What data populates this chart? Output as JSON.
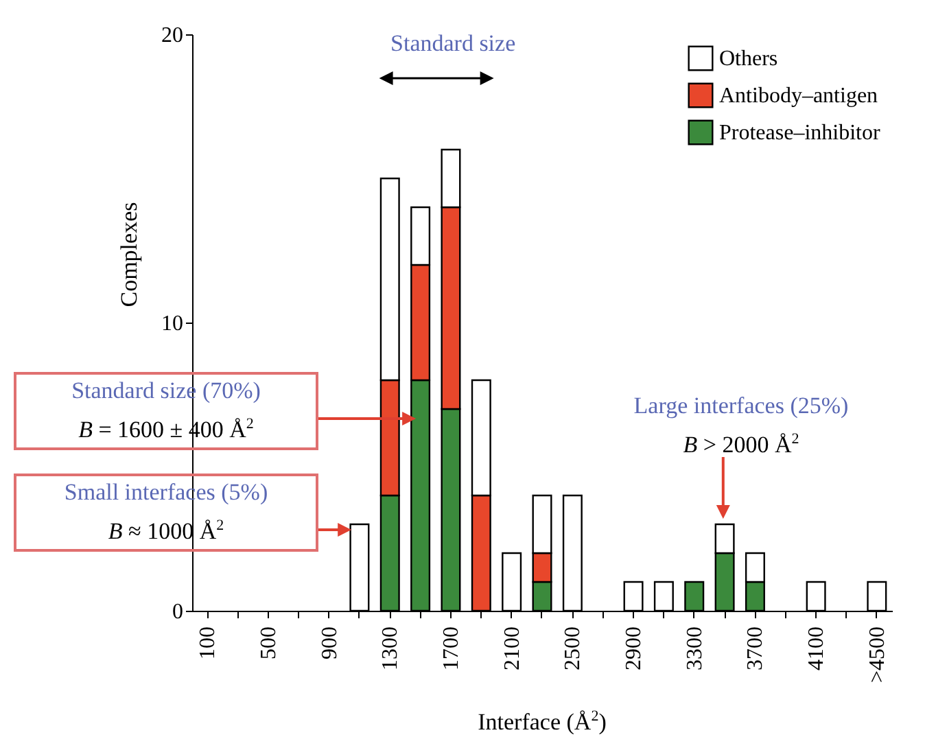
{
  "chart_data": {
    "type": "bar",
    "stacked": true,
    "xlabel": "Interface (Å$^{2}$)",
    "ylabel": "Complexes",
    "categories": [
      "100",
      null,
      "500",
      null,
      "900",
      null,
      "1300",
      null,
      "1700",
      null,
      "2100",
      null,
      "2500",
      null,
      "2900",
      null,
      "3300",
      null,
      "3700",
      null,
      "4100",
      null,
      ">4500"
    ],
    "series": [
      {
        "name": "Protease–inhibitor",
        "color": "#3b8a3c",
        "values": [
          null,
          null,
          null,
          null,
          null,
          null,
          4,
          8,
          7,
          null,
          null,
          1,
          null,
          null,
          null,
          null,
          1,
          2,
          1,
          null,
          null,
          null,
          null
        ]
      },
      {
        "name": "Antibody–antigen",
        "color": "#e8472b",
        "values": [
          null,
          null,
          null,
          null,
          null,
          null,
          4,
          4,
          7,
          4,
          null,
          1,
          null,
          null,
          null,
          null,
          null,
          null,
          null,
          null,
          null,
          null,
          null
        ]
      },
      {
        "name": "Others",
        "color": "#ffffff",
        "values": [
          null,
          null,
          null,
          null,
          null,
          3,
          7,
          2,
          2,
          4,
          2,
          2,
          4,
          null,
          1,
          1,
          null,
          1,
          1,
          null,
          1,
          null,
          1
        ]
      }
    ],
    "ylim": [
      0,
      20
    ],
    "yticks": [
      0,
      10,
      20
    ],
    "legend": "top right",
    "annotations": [
      "Standard size",
      "Standard size (70%)",
      "B = 1600 ± 400 Å$^{2}$",
      "Small interfaces (5%)",
      "B ≈ 1000 Å$^{2}$",
      "Large interfaces (25%)",
      "B > 2000 Å$^{2}$"
    ]
  }
}
